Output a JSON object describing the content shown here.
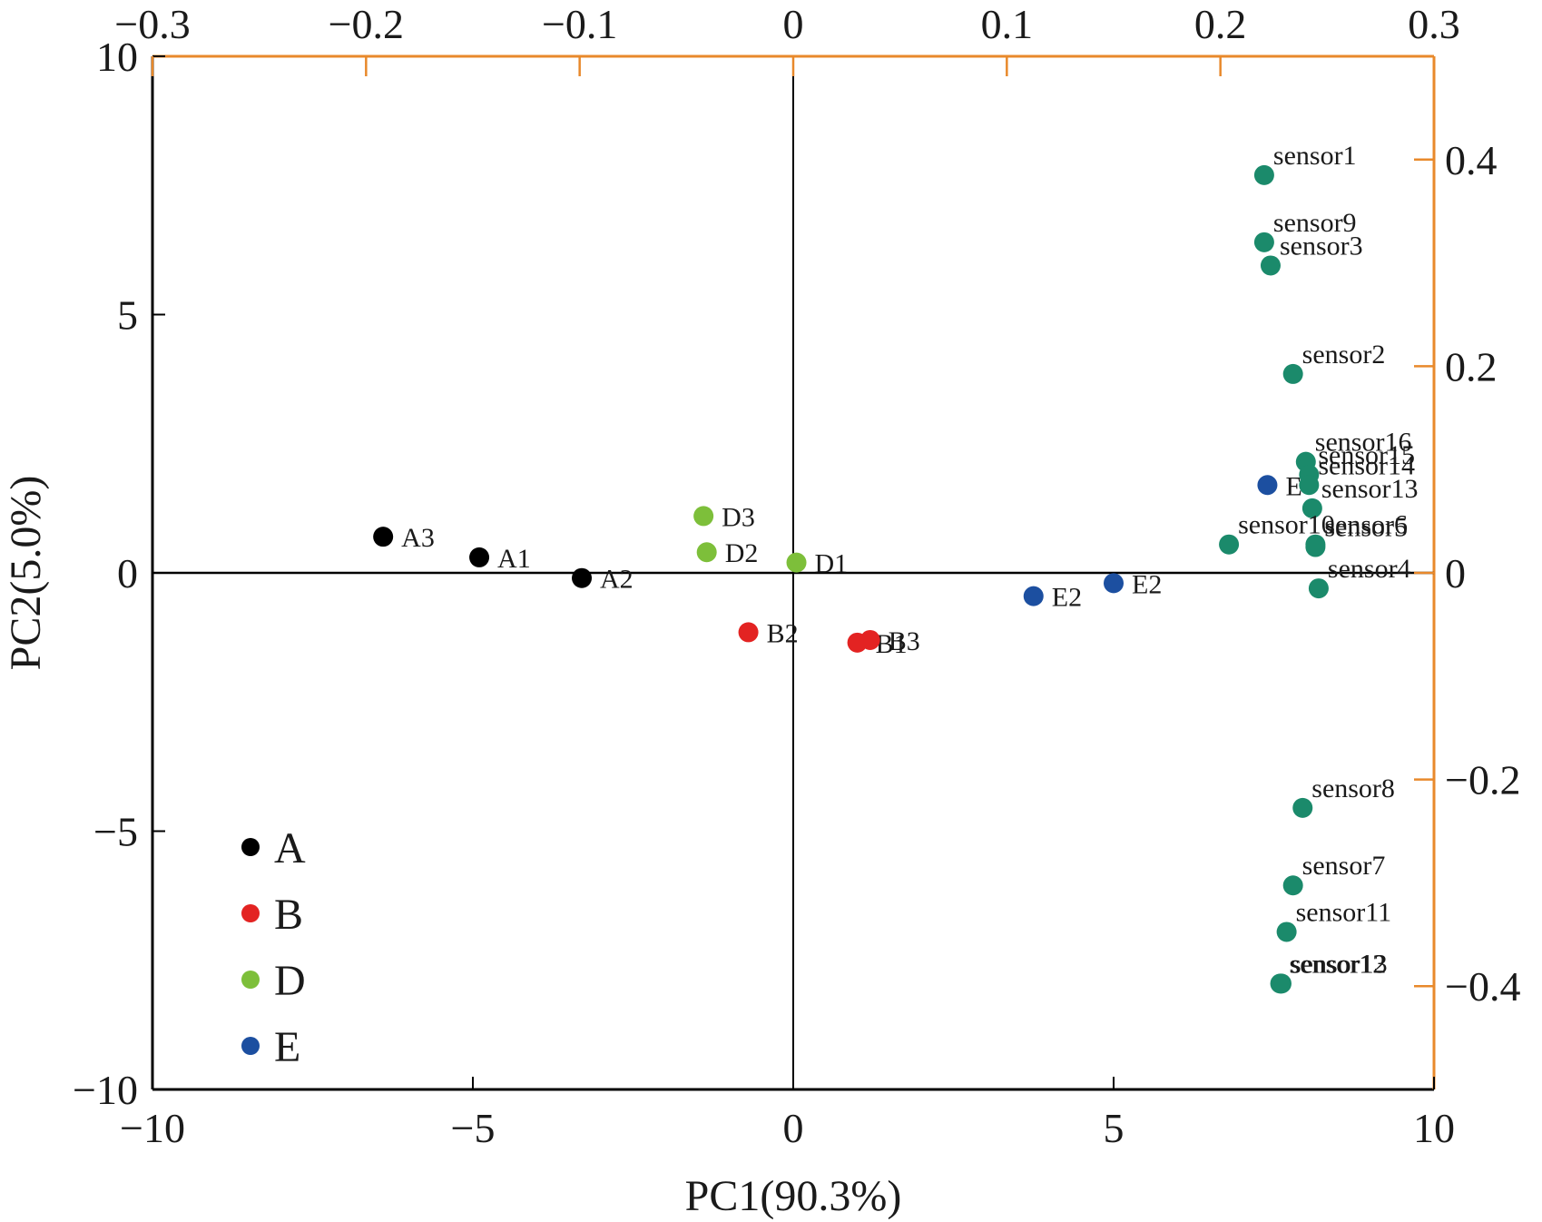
{
  "chart_data": {
    "type": "scatter",
    "title": "",
    "xlabel": "PC1(90.3%)",
    "ylabel": "PC2(5.0%)",
    "xlim": [
      -10,
      10
    ],
    "ylim": [
      -10,
      10
    ],
    "xticks": [
      "−10",
      "−5",
      "0",
      "5",
      "10"
    ],
    "yticks": [
      "−10",
      "−5",
      "0",
      "5",
      "10"
    ],
    "top_axis": {
      "lim": [
        -0.3,
        0.3
      ],
      "ticks": [
        "−0.3",
        "−0.2",
        "−0.1",
        "0",
        "0.1",
        "0.2",
        "0.3"
      ],
      "color": "#E8892B"
    },
    "right_axis": {
      "lim": [
        -0.5,
        0.5
      ],
      "ticks": [
        "0.4",
        "0.2",
        "0",
        "−0.2",
        "−0.4"
      ],
      "color": "#E8892B"
    },
    "grid": false,
    "zero_lines": true,
    "legend_position": "bottom-left",
    "legend": [
      {
        "name": "A",
        "color": "#000000"
      },
      {
        "name": "B",
        "color": "#E32322"
      },
      {
        "name": "D",
        "color": "#7DBF3A"
      },
      {
        "name": "E",
        "color": "#1C4FA0"
      }
    ],
    "series": [
      {
        "name": "A",
        "color": "#000000",
        "points": [
          {
            "label": "A3",
            "x": -6.4,
            "y": 0.7
          },
          {
            "label": "A1",
            "x": -4.9,
            "y": 0.3
          },
          {
            "label": "A2",
            "x": -3.3,
            "y": -0.1
          }
        ]
      },
      {
        "name": "B",
        "color": "#E32322",
        "points": [
          {
            "label": "B2",
            "x": -0.7,
            "y": -1.15
          },
          {
            "label": "B1",
            "x": 1.0,
            "y": -1.35
          },
          {
            "label": "B3",
            "x": 1.2,
            "y": -1.3
          }
        ]
      },
      {
        "name": "D",
        "color": "#7DBF3A",
        "points": [
          {
            "label": "D3",
            "x": -1.4,
            "y": 1.1
          },
          {
            "label": "D2",
            "x": -1.35,
            "y": 0.4
          },
          {
            "label": "D1",
            "x": 0.05,
            "y": 0.2
          }
        ]
      },
      {
        "name": "E",
        "color": "#1C4FA0",
        "points": [
          {
            "label": "E2",
            "x": 3.75,
            "y": -0.45
          },
          {
            "label": "E2",
            "x": 5.0,
            "y": -0.2
          },
          {
            "label": "E",
            "x": 7.4,
            "y": 1.7
          }
        ]
      },
      {
        "name": "sensors",
        "color": "#1B8A6B",
        "points": [
          {
            "label": "sensor1",
            "x": 7.35,
            "y": 7.7
          },
          {
            "label": "sensor9",
            "x": 7.35,
            "y": 6.4
          },
          {
            "label": "sensor3",
            "x": 7.45,
            "y": 5.95
          },
          {
            "label": "sensor2",
            "x": 7.8,
            "y": 3.85
          },
          {
            "label": "sensor16",
            "x": 8.0,
            "y": 2.15
          },
          {
            "label": "sensor15",
            "x": 8.05,
            "y": 1.9
          },
          {
            "label": "sensor14",
            "x": 8.05,
            "y": 1.7
          },
          {
            "label": "sensor13",
            "x": 8.1,
            "y": 1.25
          },
          {
            "label": "sensor10",
            "x": 6.8,
            "y": 0.55
          },
          {
            "label": "sensor6",
            "x": 8.15,
            "y": 0.55
          },
          {
            "label": "sensor5",
            "x": 8.15,
            "y": 0.5
          },
          {
            "label": "sensor4",
            "x": 8.2,
            "y": -0.3
          },
          {
            "label": "sensor8",
            "x": 7.95,
            "y": -4.55
          },
          {
            "label": "sensor7",
            "x": 7.8,
            "y": -6.05
          },
          {
            "label": "sensor11",
            "x": 7.7,
            "y": -6.95
          },
          {
            "label": "sensor12",
            "x": 7.6,
            "y": -7.95
          },
          {
            "label": "sensor13",
            "x": 7.62,
            "y": -7.95
          }
        ]
      }
    ]
  }
}
